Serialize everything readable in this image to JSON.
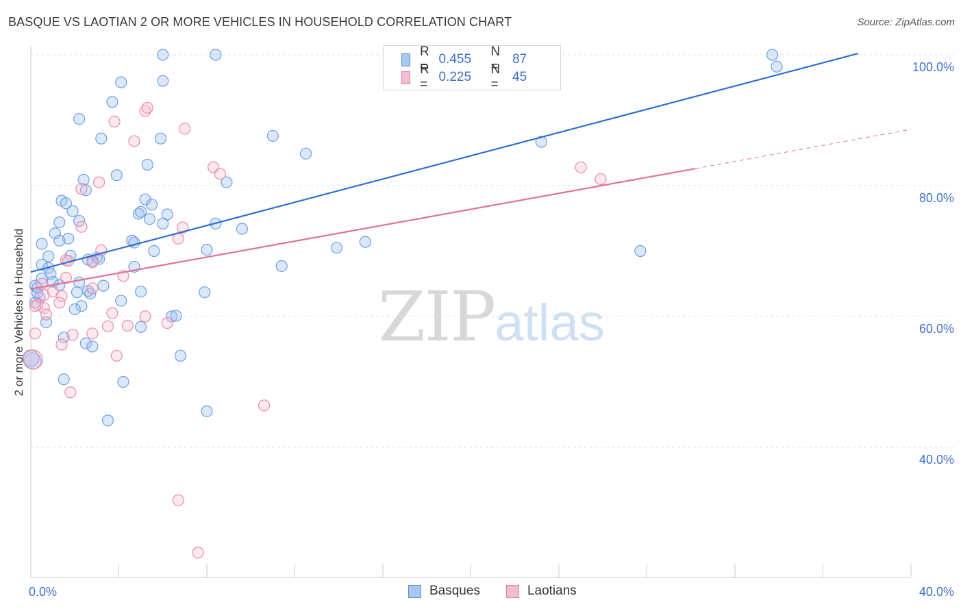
{
  "title": "BASQUE VS LAOTIAN 2 OR MORE VEHICLES IN HOUSEHOLD CORRELATION CHART",
  "source": "Source: ZipAtlas.com",
  "watermark": {
    "zip": "ZIP",
    "atlas": "atlas"
  },
  "legend": {
    "r_label": "R =",
    "n_label": "N =",
    "rows": [
      {
        "name": "Basques",
        "r": "0.455",
        "n": "87",
        "color": "#a9c8f0",
        "edge": "#5b8fd6"
      },
      {
        "name": "Laotians",
        "r": "0.225",
        "n": "45",
        "color": "#f7bcd0",
        "edge": "#e37fa2"
      }
    ]
  },
  "chart_data": {
    "type": "scatter",
    "title": "BASQUE VS LAOTIAN 2 OR MORE VEHICLES IN HOUSEHOLD CORRELATION CHART",
    "xlabel": "",
    "ylabel": "2 or more Vehicles in Household",
    "xlim": [
      0,
      40
    ],
    "ylim": [
      20,
      102
    ],
    "x_ticks": [
      "0.0%",
      "40.0%"
    ],
    "y_ticks": [
      {
        "value": 100,
        "label": "100.0%"
      },
      {
        "value": 80,
        "label": "80.0%"
      },
      {
        "value": 60,
        "label": "60.0%"
      },
      {
        "value": 40,
        "label": "40.0%"
      }
    ],
    "grid": true,
    "legend_position": "top-center",
    "series": [
      {
        "name": "Basques",
        "color": "#6f9fe0",
        "fill": "rgba(150,190,240,0.35)",
        "trend": {
          "x0": 0,
          "y0": 66.8,
          "x1": 37.6,
          "y1": 100.2,
          "color": "#2c6fd0",
          "dashed_to": null
        },
        "points": [
          [
            6.0,
            100
          ],
          [
            8.4,
            100
          ],
          [
            20.9,
            100
          ],
          [
            33.9,
            98.2
          ],
          [
            33.7,
            100
          ],
          [
            4.1,
            95.8
          ],
          [
            6.0,
            96.0
          ],
          [
            3.7,
            92.8
          ],
          [
            2.2,
            90.2
          ],
          [
            3.2,
            87.2
          ],
          [
            5.9,
            87.2
          ],
          [
            11.0,
            87.6
          ],
          [
            23.2,
            86.7
          ],
          [
            12.5,
            84.9
          ],
          [
            5.3,
            83.2
          ],
          [
            3.9,
            81.6
          ],
          [
            2.4,
            80.9
          ],
          [
            8.9,
            80.5
          ],
          [
            2.5,
            79.3
          ],
          [
            1.4,
            77.7
          ],
          [
            5.2,
            77.9
          ],
          [
            5.5,
            77.1
          ],
          [
            1.6,
            77.3
          ],
          [
            1.9,
            76.1
          ],
          [
            4.9,
            75.7
          ],
          [
            6.2,
            75.6
          ],
          [
            5.0,
            76.0
          ],
          [
            5.4,
            74.9
          ],
          [
            2.2,
            74.6
          ],
          [
            1.3,
            74.4
          ],
          [
            6.0,
            74.2
          ],
          [
            8.4,
            74.2
          ],
          [
            9.6,
            73.4
          ],
          [
            1.1,
            72.7
          ],
          [
            1.7,
            71.9
          ],
          [
            4.6,
            71.6
          ],
          [
            4.7,
            71.3
          ],
          [
            1.3,
            71.6
          ],
          [
            0.5,
            71.1
          ],
          [
            13.9,
            70.5
          ],
          [
            8.0,
            70.2
          ],
          [
            5.6,
            70.0
          ],
          [
            15.2,
            71.4
          ],
          [
            27.7,
            70.0
          ],
          [
            1.8,
            69.3
          ],
          [
            0.8,
            69.2
          ],
          [
            3.0,
            69.0
          ],
          [
            3.1,
            68.8
          ],
          [
            2.6,
            68.7
          ],
          [
            2.8,
            68.5
          ],
          [
            0.5,
            67.9
          ],
          [
            0.8,
            67.4
          ],
          [
            4.7,
            67.6
          ],
          [
            11.4,
            67.7
          ],
          [
            0.9,
            66.5
          ],
          [
            0.5,
            65.8
          ],
          [
            1.0,
            65.3
          ],
          [
            0.2,
            64.7
          ],
          [
            3.3,
            64.7
          ],
          [
            1.3,
            64.8
          ],
          [
            2.2,
            65.2
          ],
          [
            0.3,
            64.4
          ],
          [
            0.3,
            63.6
          ],
          [
            2.1,
            63.7
          ],
          [
            2.6,
            63.9
          ],
          [
            5.0,
            63.8
          ],
          [
            7.9,
            63.7
          ],
          [
            2.7,
            63.5
          ],
          [
            0.4,
            62.9
          ],
          [
            4.1,
            62.4
          ],
          [
            0.2,
            62.1
          ],
          [
            2.3,
            61.6
          ],
          [
            2.0,
            61.1
          ],
          [
            6.4,
            60.0
          ],
          [
            6.6,
            60.1
          ],
          [
            5.0,
            58.4
          ],
          [
            0.7,
            59.1
          ],
          [
            1.5,
            56.8
          ],
          [
            2.5,
            55.9
          ],
          [
            2.8,
            55.4
          ],
          [
            6.8,
            54.0
          ],
          [
            1.5,
            50.4
          ],
          [
            4.2,
            50.0
          ],
          [
            8.0,
            45.5
          ],
          [
            3.5,
            44.1
          ],
          [
            0.1,
            53.2
          ],
          [
            0.0,
            53.6
          ]
        ]
      },
      {
        "name": "Laotians",
        "color": "#e88aab",
        "fill": "rgba(247,188,208,0.35)",
        "trend": {
          "x0": 0,
          "y0": 64.2,
          "x1": 30.2,
          "y1": 82.6,
          "x2": 40,
          "y2": 88.6,
          "color": "#e0709a"
        },
        "points": [
          [
            5.2,
            91.4
          ],
          [
            5.3,
            91.9
          ],
          [
            3.8,
            89.8
          ],
          [
            7.0,
            88.7
          ],
          [
            4.7,
            86.8
          ],
          [
            8.3,
            82.8
          ],
          [
            8.6,
            81.8
          ],
          [
            3.1,
            80.5
          ],
          [
            2.3,
            79.5
          ],
          [
            25.0,
            82.8
          ],
          [
            25.9,
            81.0
          ],
          [
            6.9,
            73.6
          ],
          [
            2.3,
            73.7
          ],
          [
            6.7,
            71.9
          ],
          [
            3.2,
            70.1
          ],
          [
            1.6,
            68.6
          ],
          [
            2.8,
            68.3
          ],
          [
            1.7,
            68.5
          ],
          [
            4.2,
            66.2
          ],
          [
            1.6,
            65.9
          ],
          [
            0.5,
            65.0
          ],
          [
            2.8,
            64.3
          ],
          [
            1.0,
            63.8
          ],
          [
            0.6,
            63.3
          ],
          [
            1.4,
            63.1
          ],
          [
            1.3,
            62.1
          ],
          [
            0.6,
            61.3
          ],
          [
            0.3,
            61.8
          ],
          [
            0.7,
            60.3
          ],
          [
            5.2,
            60.0
          ],
          [
            6.2,
            59.0
          ],
          [
            3.7,
            60.5
          ],
          [
            3.5,
            58.5
          ],
          [
            4.4,
            58.6
          ],
          [
            1.9,
            57.2
          ],
          [
            2.8,
            57.4
          ],
          [
            0.2,
            57.4
          ],
          [
            1.4,
            55.7
          ],
          [
            3.9,
            54.0
          ],
          [
            0.1,
            53.4
          ],
          [
            1.8,
            48.4
          ],
          [
            10.6,
            46.4
          ],
          [
            6.7,
            31.9
          ],
          [
            7.6,
            23.9
          ],
          [
            0.2,
            61.6
          ]
        ]
      }
    ]
  }
}
